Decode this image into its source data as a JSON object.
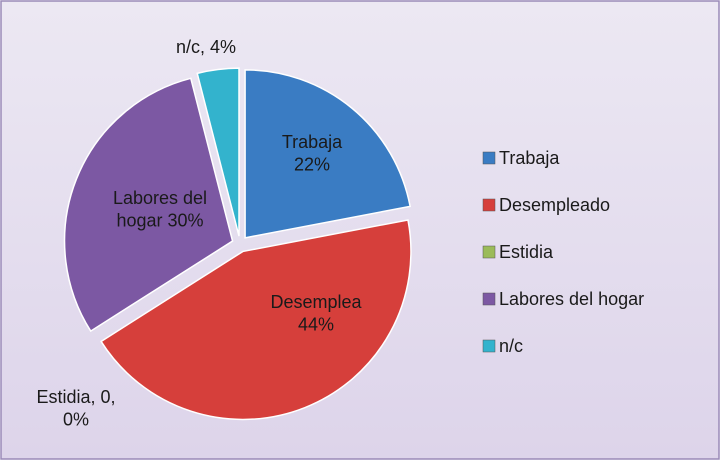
{
  "chart_data": {
    "type": "pie",
    "categories": [
      "Trabaja",
      "Desempleado",
      "Estidia",
      "Labores del hogar",
      "n/c"
    ],
    "values": [
      22,
      44,
      0,
      30,
      4
    ],
    "value_labels": [
      "Trabaja\n22%",
      "Desemplea\n44%",
      "Estidia, 0,\n0%",
      "Labores del\nhogar 30%",
      "n/c,  4%"
    ],
    "colors": [
      "#3a7cc3",
      "#d63f3b",
      "#9bbb59",
      "#7c58a3",
      "#33b3cd"
    ]
  }
}
